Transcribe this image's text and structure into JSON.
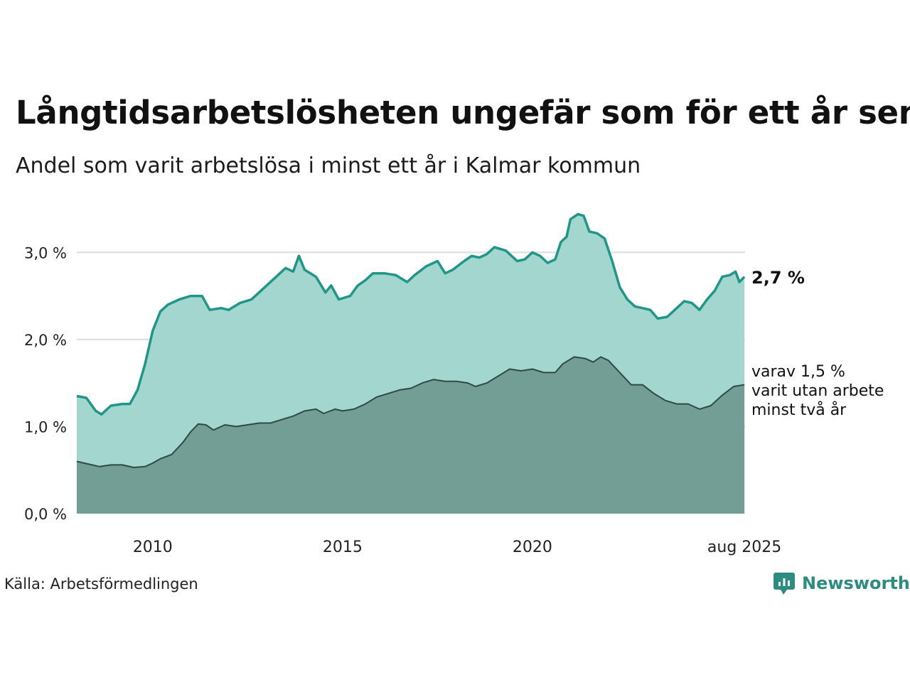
{
  "title": "Långtidsarbetslösheten ungefär som för ett år sen",
  "subtitle": "Andel som varit arbetslösa i minst ett år i Kalmar kommun",
  "source": "Källa: Arbetsförmedlingen",
  "brand": {
    "name": "Newsworthy",
    "icon": "newsworthy-logo-icon",
    "color": "#2e8b80"
  },
  "colors": {
    "main_line": "#1f9688",
    "main_fill": "#a3d6cf",
    "sub_line": "#2f4a44",
    "sub_fill": "#729e96",
    "grid": "#dddddd"
  },
  "chart_data": {
    "type": "area",
    "x_unit": "year (decimal)",
    "xlim": [
      2008.0,
      2025.6
    ],
    "ylim": [
      0,
      3.5
    ],
    "y_ticks": [
      {
        "value": 0,
        "label": "0,0 %"
      },
      {
        "value": 1,
        "label": "1,0 %"
      },
      {
        "value": 2,
        "label": "2,0 %"
      },
      {
        "value": 3,
        "label": "3,0 %"
      }
    ],
    "x_ticks": [
      {
        "value": 2010,
        "label": "2010"
      },
      {
        "value": 2015,
        "label": "2015"
      },
      {
        "value": 2020,
        "label": "2020"
      },
      {
        "value": 2025.583,
        "label": "aug 2025"
      }
    ],
    "grid": true,
    "series": [
      {
        "key": "total",
        "label": "2,7 %",
        "points": [
          [
            2008.0,
            1.35
          ],
          [
            2008.25,
            1.33
          ],
          [
            2008.5,
            1.18
          ],
          [
            2008.65,
            1.14
          ],
          [
            2008.9,
            1.24
          ],
          [
            2009.2,
            1.26
          ],
          [
            2009.4,
            1.26
          ],
          [
            2009.6,
            1.42
          ],
          [
            2009.8,
            1.72
          ],
          [
            2010.0,
            2.1
          ],
          [
            2010.2,
            2.32
          ],
          [
            2010.4,
            2.4
          ],
          [
            2010.7,
            2.46
          ],
          [
            2011.0,
            2.5
          ],
          [
            2011.3,
            2.5
          ],
          [
            2011.5,
            2.34
          ],
          [
            2011.8,
            2.36
          ],
          [
            2012.0,
            2.34
          ],
          [
            2012.3,
            2.42
          ],
          [
            2012.6,
            2.46
          ],
          [
            2012.9,
            2.58
          ],
          [
            2013.2,
            2.7
          ],
          [
            2013.5,
            2.82
          ],
          [
            2013.7,
            2.78
          ],
          [
            2013.85,
            2.96
          ],
          [
            2014.0,
            2.8
          ],
          [
            2014.3,
            2.72
          ],
          [
            2014.55,
            2.54
          ],
          [
            2014.7,
            2.62
          ],
          [
            2014.9,
            2.46
          ],
          [
            2015.2,
            2.5
          ],
          [
            2015.4,
            2.62
          ],
          [
            2015.6,
            2.68
          ],
          [
            2015.8,
            2.76
          ],
          [
            2016.1,
            2.76
          ],
          [
            2016.4,
            2.74
          ],
          [
            2016.7,
            2.66
          ],
          [
            2016.9,
            2.74
          ],
          [
            2017.2,
            2.84
          ],
          [
            2017.5,
            2.9
          ],
          [
            2017.7,
            2.76
          ],
          [
            2017.9,
            2.8
          ],
          [
            2018.2,
            2.9
          ],
          [
            2018.4,
            2.96
          ],
          [
            2018.6,
            2.94
          ],
          [
            2018.8,
            2.98
          ],
          [
            2019.0,
            3.06
          ],
          [
            2019.3,
            3.02
          ],
          [
            2019.6,
            2.9
          ],
          [
            2019.8,
            2.92
          ],
          [
            2020.0,
            3.0
          ],
          [
            2020.2,
            2.96
          ],
          [
            2020.4,
            2.88
          ],
          [
            2020.6,
            2.92
          ],
          [
            2020.75,
            3.12
          ],
          [
            2020.9,
            3.18
          ],
          [
            2021.0,
            3.38
          ],
          [
            2021.2,
            3.44
          ],
          [
            2021.35,
            3.42
          ],
          [
            2021.5,
            3.24
          ],
          [
            2021.7,
            3.22
          ],
          [
            2021.9,
            3.16
          ],
          [
            2022.1,
            2.9
          ],
          [
            2022.3,
            2.6
          ],
          [
            2022.5,
            2.46
          ],
          [
            2022.7,
            2.38
          ],
          [
            2022.9,
            2.36
          ],
          [
            2023.1,
            2.34
          ],
          [
            2023.3,
            2.24
          ],
          [
            2023.55,
            2.26
          ],
          [
            2023.8,
            2.36
          ],
          [
            2024.0,
            2.44
          ],
          [
            2024.2,
            2.42
          ],
          [
            2024.4,
            2.34
          ],
          [
            2024.6,
            2.46
          ],
          [
            2024.8,
            2.56
          ],
          [
            2025.0,
            2.72
          ],
          [
            2025.2,
            2.74
          ],
          [
            2025.35,
            2.78
          ],
          [
            2025.45,
            2.66
          ],
          [
            2025.583,
            2.72
          ]
        ]
      },
      {
        "key": "two_years",
        "label": "varav 1,5 % varit utan arbete minst två år",
        "points": [
          [
            2008.0,
            0.6
          ],
          [
            2008.3,
            0.57
          ],
          [
            2008.6,
            0.54
          ],
          [
            2008.9,
            0.56
          ],
          [
            2009.2,
            0.56
          ],
          [
            2009.5,
            0.53
          ],
          [
            2009.8,
            0.54
          ],
          [
            2010.0,
            0.58
          ],
          [
            2010.2,
            0.63
          ],
          [
            2010.5,
            0.68
          ],
          [
            2010.8,
            0.82
          ],
          [
            2011.0,
            0.94
          ],
          [
            2011.2,
            1.03
          ],
          [
            2011.4,
            1.02
          ],
          [
            2011.6,
            0.96
          ],
          [
            2011.9,
            1.02
          ],
          [
            2012.2,
            1.0
          ],
          [
            2012.5,
            1.02
          ],
          [
            2012.8,
            1.04
          ],
          [
            2013.1,
            1.04
          ],
          [
            2013.4,
            1.08
          ],
          [
            2013.7,
            1.12
          ],
          [
            2014.0,
            1.18
          ],
          [
            2014.3,
            1.2
          ],
          [
            2014.5,
            1.15
          ],
          [
            2014.8,
            1.2
          ],
          [
            2015.0,
            1.18
          ],
          [
            2015.3,
            1.2
          ],
          [
            2015.6,
            1.26
          ],
          [
            2015.9,
            1.34
          ],
          [
            2016.2,
            1.38
          ],
          [
            2016.5,
            1.42
          ],
          [
            2016.8,
            1.44
          ],
          [
            2017.1,
            1.5
          ],
          [
            2017.4,
            1.54
          ],
          [
            2017.7,
            1.52
          ],
          [
            2018.0,
            1.52
          ],
          [
            2018.3,
            1.5
          ],
          [
            2018.5,
            1.46
          ],
          [
            2018.8,
            1.5
          ],
          [
            2019.1,
            1.58
          ],
          [
            2019.4,
            1.66
          ],
          [
            2019.7,
            1.64
          ],
          [
            2020.0,
            1.66
          ],
          [
            2020.3,
            1.62
          ],
          [
            2020.6,
            1.62
          ],
          [
            2020.8,
            1.72
          ],
          [
            2021.1,
            1.8
          ],
          [
            2021.4,
            1.78
          ],
          [
            2021.6,
            1.74
          ],
          [
            2021.8,
            1.8
          ],
          [
            2022.0,
            1.76
          ],
          [
            2022.3,
            1.62
          ],
          [
            2022.6,
            1.48
          ],
          [
            2022.9,
            1.48
          ],
          [
            2023.2,
            1.38
          ],
          [
            2023.5,
            1.3
          ],
          [
            2023.8,
            1.26
          ],
          [
            2024.1,
            1.26
          ],
          [
            2024.4,
            1.2
          ],
          [
            2024.7,
            1.24
          ],
          [
            2025.0,
            1.36
          ],
          [
            2025.3,
            1.46
          ],
          [
            2025.583,
            1.48
          ]
        ]
      }
    ]
  }
}
